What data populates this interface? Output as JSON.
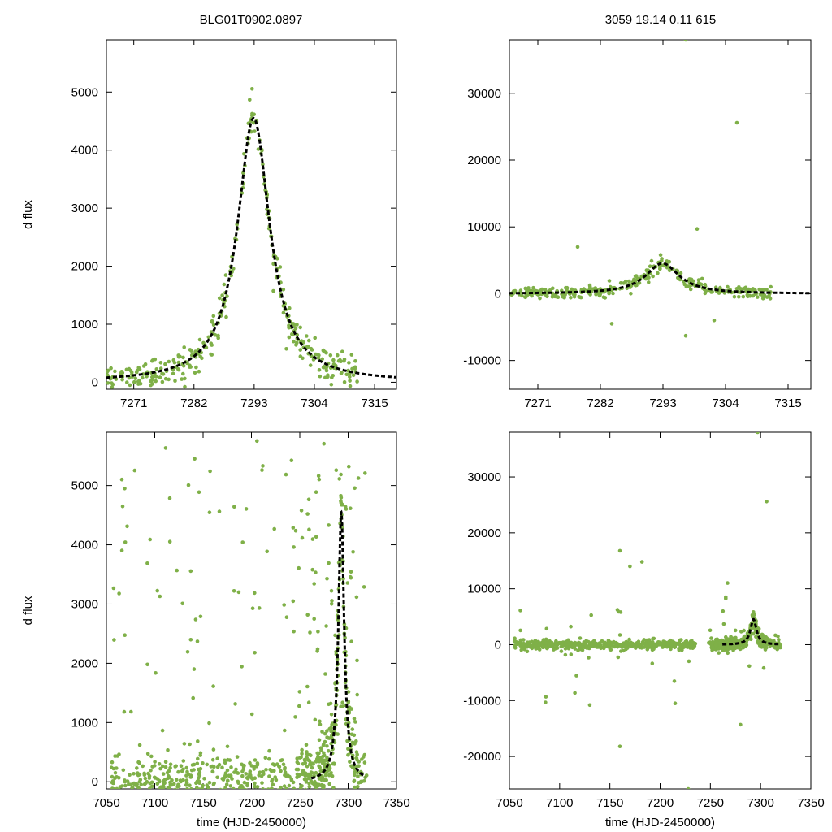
{
  "figure": {
    "title_left": "BLG01T0902.0897",
    "title_right": "3059  19.14  0.11  615",
    "point_color": "#7fb048",
    "model_color": "#000000"
  },
  "event_model": {
    "t0": 7292.9,
    "amplitude": 4550,
    "tE": 3.6,
    "shape": "lorentzian-like magnification"
  },
  "chart_data": [
    {
      "id": "top-left",
      "type": "scatter",
      "title": "BLG01T0902.0897",
      "xlabel": "",
      "ylabel": "d flux",
      "xlim": [
        7266,
        7319
      ],
      "ylim": [
        -120,
        5900
      ],
      "xticks": [
        7271,
        7282,
        7293,
        7304,
        7315
      ],
      "yticks": [
        0,
        1000,
        2000,
        3000,
        4000,
        5000
      ],
      "scatter_range": {
        "x": [
          7266,
          7312
        ],
        "noise": 150
      },
      "series": [
        {
          "name": "model",
          "style": "dashed"
        }
      ]
    },
    {
      "id": "top-right",
      "type": "scatter",
      "title": "3059  19.14  0.11  615",
      "xlabel": "",
      "ylabel": "",
      "xlim": [
        7266,
        7319
      ],
      "ylim": [
        -14300,
        38000
      ],
      "xticks": [
        7271,
        7282,
        7293,
        7304,
        7315
      ],
      "yticks": [
        -10000,
        0,
        10000,
        20000,
        30000
      ],
      "scatter_range": {
        "x": [
          7266,
          7312
        ],
        "noise": 500
      },
      "outliers": [
        [
          7297,
          38000
        ],
        [
          7306,
          25600
        ],
        [
          7278,
          7000
        ],
        [
          7284,
          -4500
        ],
        [
          7297,
          -6300
        ],
        [
          7299,
          9700
        ],
        [
          7302,
          -4000
        ]
      ],
      "series": [
        {
          "name": "model",
          "style": "dashed"
        }
      ]
    },
    {
      "id": "bottom-left",
      "type": "scatter",
      "title": "",
      "xlabel": "time (HJD-2450000)",
      "ylabel": "d flux",
      "xlim": [
        7050,
        7350
      ],
      "ylim": [
        -120,
        5900
      ],
      "xticks": [
        7050,
        7100,
        7150,
        7200,
        7250,
        7300,
        7350
      ],
      "yticks": [
        0,
        1000,
        2000,
        3000,
        4000,
        5000
      ],
      "scatter_range": {
        "x": [
          7055,
          7320
        ],
        "noise": 400
      },
      "series": [
        {
          "name": "model",
          "style": "dashed"
        }
      ]
    },
    {
      "id": "bottom-right",
      "type": "scatter",
      "title": "",
      "xlabel": "time (HJD-2450000)",
      "ylabel": "",
      "xlim": [
        7050,
        7350
      ],
      "ylim": [
        -25800,
        38000
      ],
      "xticks": [
        7050,
        7100,
        7150,
        7200,
        7250,
        7300,
        7350
      ],
      "yticks": [
        -20000,
        -10000,
        0,
        10000,
        20000,
        30000
      ],
      "scatter_range": {
        "x": [
          7055,
          7320
        ],
        "noise": 700
      },
      "outliers": [
        [
          7297,
          38000
        ],
        [
          7306,
          25600
        ],
        [
          7160,
          16800
        ],
        [
          7170,
          14000
        ],
        [
          7182,
          14800
        ],
        [
          7160,
          -18200
        ],
        [
          7130,
          -10800
        ],
        [
          7215,
          -10500
        ],
        [
          7280,
          -14300
        ],
        [
          7228,
          -25800
        ]
      ],
      "series": [
        {
          "name": "model",
          "style": "dashed"
        }
      ]
    }
  ]
}
